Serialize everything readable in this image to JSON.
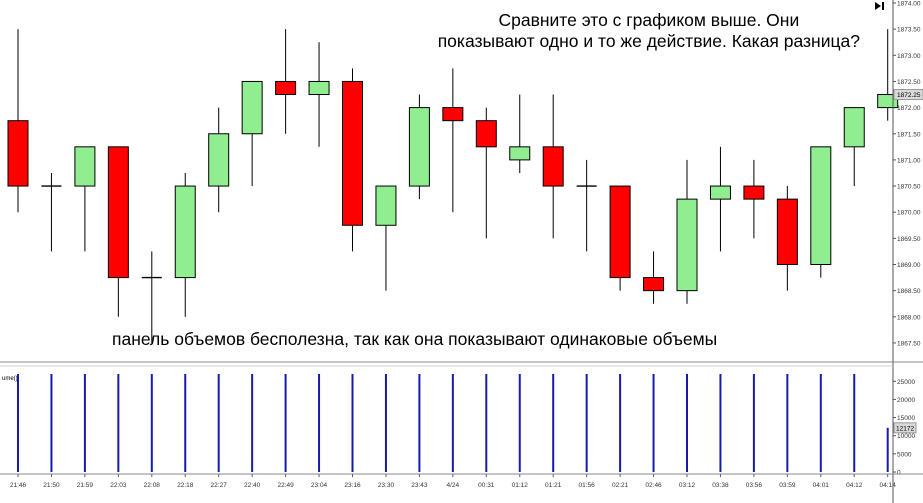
{
  "annotations": {
    "top_line1": "Сравните это с графиком выше. Они",
    "top_line2": "показывают одно и то же действие. Какая разница?",
    "bottom": "панель объемов бесполезна, так как она показывают одинаковые объемы"
  },
  "volume_panel_label": "ume()",
  "chart_data": [
    {
      "type": "candlestick",
      "title": "",
      "price_labels": [
        "1874.00",
        "1873.50",
        "1873.00",
        "1872.50",
        "1872.00",
        "1871.50",
        "1871.00",
        "1870.50",
        "1870.00",
        "1869.50",
        "1869.00",
        "1868.50",
        "1868.00",
        "1867.50"
      ],
      "ylim": [
        1867.2,
        1874.0
      ],
      "last_price_label": "1872.25",
      "up_color": "#90ee90",
      "down_color": "#ff0000",
      "grid": false,
      "candles": [
        {
          "time": "21:46",
          "o": 1871.75,
          "h": 1873.5,
          "l": 1870.0,
          "c": 1870.5
        },
        {
          "time": "21:50",
          "o": 1870.5,
          "h": 1870.75,
          "l": 1869.25,
          "c": 1870.5
        },
        {
          "time": "21:59",
          "o": 1870.5,
          "h": 1871.25,
          "l": 1869.25,
          "c": 1871.25
        },
        {
          "time": "22:03",
          "o": 1871.25,
          "h": 1871.25,
          "l": 1868.0,
          "c": 1868.75
        },
        {
          "time": "22:08",
          "o": 1868.75,
          "h": 1869.25,
          "l": 1867.5,
          "c": 1868.75
        },
        {
          "time": "22:18",
          "o": 1868.75,
          "h": 1870.75,
          "l": 1868.0,
          "c": 1870.5
        },
        {
          "time": "22:27",
          "o": 1870.5,
          "h": 1872.0,
          "l": 1870.0,
          "c": 1871.5
        },
        {
          "time": "22:40",
          "o": 1871.5,
          "h": 1872.5,
          "l": 1870.5,
          "c": 1872.5
        },
        {
          "time": "22:49",
          "o": 1872.5,
          "h": 1873.5,
          "l": 1871.5,
          "c": 1872.25
        },
        {
          "time": "23:04",
          "o": 1872.25,
          "h": 1873.25,
          "l": 1871.25,
          "c": 1872.5
        },
        {
          "time": "23:16",
          "o": 1872.5,
          "h": 1872.75,
          "l": 1869.25,
          "c": 1869.75
        },
        {
          "time": "23:30",
          "o": 1869.75,
          "h": 1870.5,
          "l": 1868.5,
          "c": 1870.5
        },
        {
          "time": "23:43",
          "o": 1870.5,
          "h": 1872.25,
          "l": 1870.25,
          "c": 1872.0
        },
        {
          "time": "4/24",
          "o": 1872.0,
          "h": 1872.75,
          "l": 1870.0,
          "c": 1871.75
        },
        {
          "time": "00:31",
          "o": 1871.75,
          "h": 1872.0,
          "l": 1869.5,
          "c": 1871.25
        },
        {
          "time": "01:12",
          "o": 1871.0,
          "h": 1872.25,
          "l": 1870.75,
          "c": 1871.25
        },
        {
          "time": "01:21",
          "o": 1871.25,
          "h": 1872.25,
          "l": 1869.5,
          "c": 1870.5
        },
        {
          "time": "01:56",
          "o": 1870.5,
          "h": 1871.0,
          "l": 1869.25,
          "c": 1870.5
        },
        {
          "time": "02:21",
          "o": 1870.5,
          "h": 1870.5,
          "l": 1868.5,
          "c": 1868.75
        },
        {
          "time": "02:46",
          "o": 1868.75,
          "h": 1869.25,
          "l": 1868.25,
          "c": 1868.5
        },
        {
          "time": "03:12",
          "o": 1868.5,
          "h": 1871.0,
          "l": 1868.25,
          "c": 1870.25
        },
        {
          "time": "03:38",
          "o": 1870.25,
          "h": 1871.25,
          "l": 1869.25,
          "c": 1870.5
        },
        {
          "time": "03:56",
          "o": 1870.5,
          "h": 1871.0,
          "l": 1869.5,
          "c": 1870.25
        },
        {
          "time": "03:59",
          "o": 1870.25,
          "h": 1870.5,
          "l": 1868.5,
          "c": 1869.0
        },
        {
          "time": "04:01",
          "o": 1869.0,
          "h": 1871.25,
          "l": 1868.75,
          "c": 1871.25
        },
        {
          "time": "04:12",
          "o": 1871.25,
          "h": 1872.0,
          "l": 1870.5,
          "c": 1872.0
        },
        {
          "time": "04:14",
          "o": 1872.0,
          "h": 1873.5,
          "l": 1871.75,
          "c": 1872.25
        }
      ]
    },
    {
      "type": "bar",
      "title": "",
      "y_labels": [
        "25000",
        "20000",
        "15000",
        "10000",
        "5000",
        "0"
      ],
      "last_value_label": "12172",
      "ylim": [
        0,
        27000
      ],
      "bar_color": "#1a1aa8",
      "values": [
        27000,
        27000,
        27000,
        27000,
        27000,
        27000,
        27000,
        27000,
        27000,
        27000,
        27000,
        27000,
        27000,
        27000,
        27000,
        27000,
        27000,
        27000,
        27000,
        27000,
        27000,
        27000,
        27000,
        27000,
        27000,
        27000,
        12172
      ]
    }
  ]
}
